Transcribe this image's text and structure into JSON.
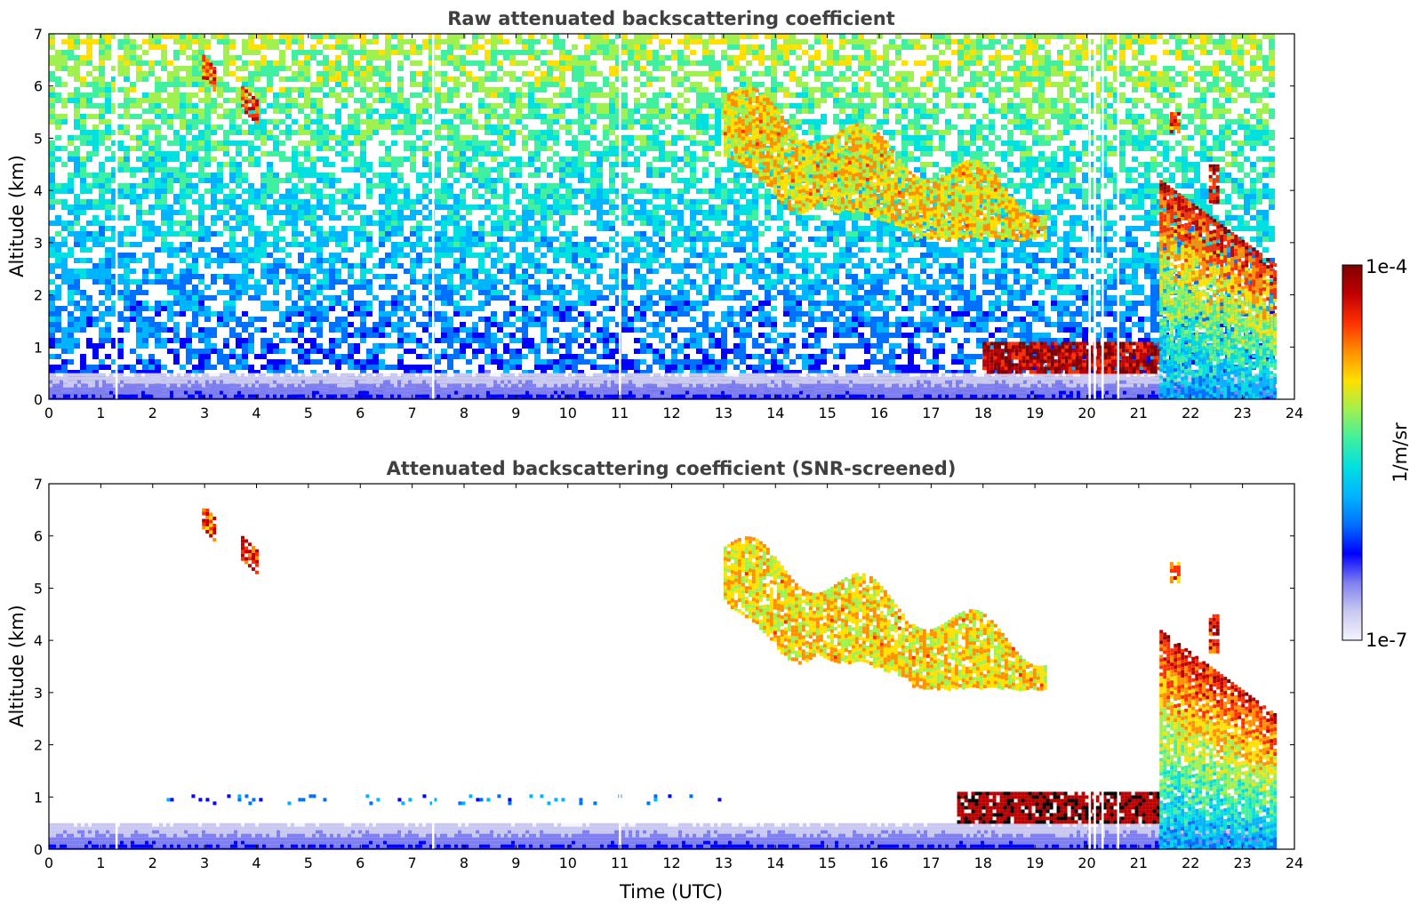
{
  "chart_data": [
    {
      "type": "heatmap",
      "title": "Raw attenuated backscattering coefficient",
      "xlabel": "",
      "ylabel": "Altitude (km)",
      "xlim": [
        0,
        24
      ],
      "ylim": [
        0,
        7
      ],
      "xticks": [
        "0",
        "1",
        "2",
        "3",
        "4",
        "5",
        "6",
        "7",
        "8",
        "9",
        "10",
        "11",
        "12",
        "13",
        "14",
        "15",
        "16",
        "17",
        "18",
        "19",
        "20",
        "21",
        "22",
        "23",
        "24"
      ],
      "yticks": [
        "0",
        "1",
        "2",
        "3",
        "4",
        "5",
        "6",
        "7"
      ],
      "data_end_hour": 23.6,
      "data_gaps_hours": [
        1.3,
        7.4,
        11.0,
        20.05,
        20.15,
        20.3,
        20.6
      ],
      "background": "noise",
      "features": [
        {
          "name": "boundary-layer",
          "t0": 0,
          "t1": 23.6,
          "z0": 0.0,
          "z1": 0.5,
          "level": 0.12
        },
        {
          "name": "cirrus-early-1",
          "t0": 2.95,
          "t1": 3.2,
          "z0": 5.9,
          "z1": 6.6,
          "level": 0.82
        },
        {
          "name": "cirrus-early-2",
          "t0": 3.7,
          "t1": 4.0,
          "z0": 5.3,
          "z1": 6.0,
          "level": 0.85
        },
        {
          "name": "cirrus-band",
          "t0": 13.0,
          "t1": 19.2,
          "z0": 3.1,
          "z1": 5.8,
          "level": 0.7
        },
        {
          "name": "low-cloud",
          "t0": 18.0,
          "t1": 21.4,
          "z0": 0.5,
          "z1": 1.1,
          "level": 0.95
        },
        {
          "name": "late-cloud-top",
          "t0": 21.6,
          "t1": 21.75,
          "z0": 5.1,
          "z1": 5.5,
          "level": 0.8
        },
        {
          "name": "late-cloud-streak",
          "t0": 22.35,
          "t1": 22.55,
          "z0": 3.8,
          "z1": 4.5,
          "level": 0.9
        },
        {
          "name": "precipitation",
          "t0": 21.4,
          "t1": 23.6,
          "z0": 0.0,
          "z1": 4.2,
          "level": 0.75
        }
      ]
    },
    {
      "type": "heatmap",
      "title": "Attenuated backscattering coefficient (SNR-screened)",
      "xlabel": "Time (UTC)",
      "ylabel": "Altitude (km)",
      "xlim": [
        0,
        24
      ],
      "ylim": [
        0,
        7
      ],
      "xticks": [
        "0",
        "1",
        "2",
        "3",
        "4",
        "5",
        "6",
        "7",
        "8",
        "9",
        "10",
        "11",
        "12",
        "13",
        "14",
        "15",
        "16",
        "17",
        "18",
        "19",
        "20",
        "21",
        "22",
        "23",
        "24"
      ],
      "yticks": [
        "0",
        "1",
        "2",
        "3",
        "4",
        "5",
        "6",
        "7"
      ],
      "data_end_hour": 23.6,
      "data_gaps_hours": [
        1.3,
        7.4,
        11.0,
        20.05,
        20.15,
        20.3,
        20.6
      ],
      "background": "none",
      "features": [
        {
          "name": "boundary-layer",
          "t0": 0,
          "t1": 23.6,
          "z0": 0.0,
          "z1": 0.5,
          "level": 0.12
        },
        {
          "name": "aerosol-speckle",
          "t0": 2.2,
          "t1": 13.0,
          "z0": 0.85,
          "z1": 1.05,
          "level": 0.3
        },
        {
          "name": "cirrus-early-1",
          "t0": 2.95,
          "t1": 3.2,
          "z0": 5.9,
          "z1": 6.6,
          "level": 0.82
        },
        {
          "name": "cirrus-early-2",
          "t0": 3.7,
          "t1": 4.0,
          "z0": 5.3,
          "z1": 6.0,
          "level": 0.85
        },
        {
          "name": "cirrus-band",
          "t0": 13.0,
          "t1": 19.2,
          "z0": 3.1,
          "z1": 5.8,
          "level": 0.7
        },
        {
          "name": "low-cloud",
          "t0": 17.5,
          "t1": 21.4,
          "z0": 0.5,
          "z1": 1.1,
          "level": 0.95
        },
        {
          "name": "late-cloud-top",
          "t0": 21.6,
          "t1": 21.75,
          "z0": 5.1,
          "z1": 5.5,
          "level": 0.8
        },
        {
          "name": "late-cloud-streak",
          "t0": 22.35,
          "t1": 22.55,
          "z0": 3.8,
          "z1": 4.5,
          "level": 0.9
        },
        {
          "name": "precipitation",
          "t0": 21.4,
          "t1": 23.6,
          "z0": 0.0,
          "z1": 4.2,
          "level": 0.75
        }
      ]
    }
  ],
  "colorbar": {
    "min_label": "1e-7",
    "max_label": "1e-4",
    "unit_label": "1/m/sr",
    "colormap": "jet",
    "stops": [
      "#f4f4ff",
      "#c8c8f0",
      "#7f7fef",
      "#0000ff",
      "#0070ff",
      "#00b4ff",
      "#00e0e0",
      "#40f0a0",
      "#a0f050",
      "#ffe000",
      "#ff9000",
      "#ff3000",
      "#c00000",
      "#800000"
    ]
  }
}
